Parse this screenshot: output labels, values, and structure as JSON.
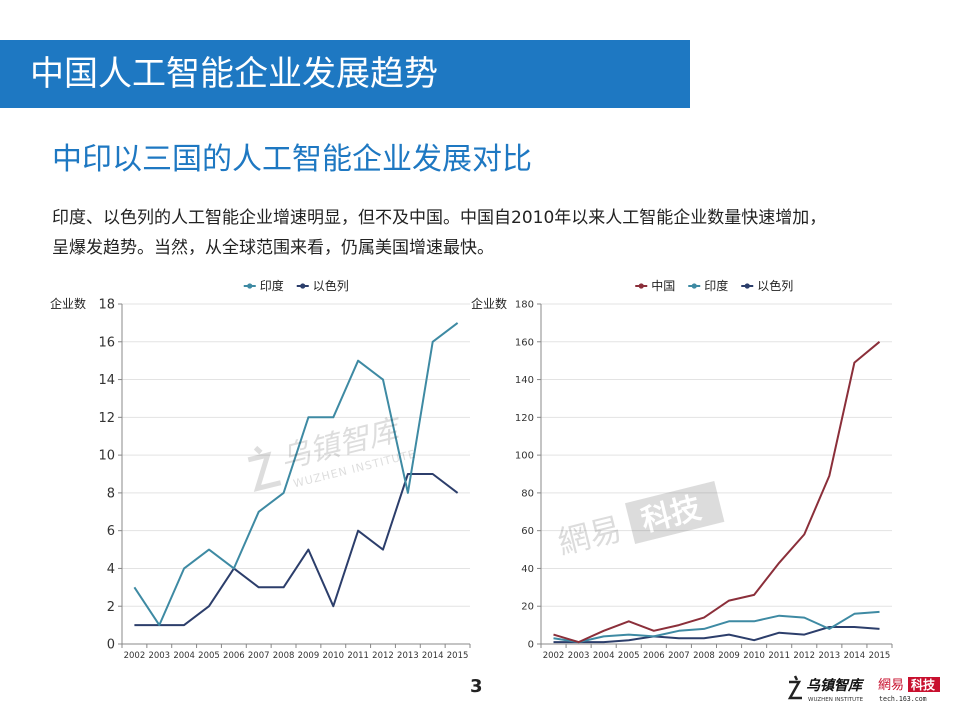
{
  "header": {
    "title": "中国人工智能企业发展趋势"
  },
  "subtitle": "中印以三国的人工智能企业发展对比",
  "body_text": {
    "line1": "印度、以色列的人工智能企业增速明显，但不及中国。中国自2010年以来人工智能企业数量快速增加，",
    "line2": "呈爆发趋势。当然，从全球范围来看，仍属美国增速最快。"
  },
  "colors": {
    "title_bar": "#1e78c2",
    "india": "#3e8aa3",
    "israel": "#2c3e6b",
    "china": "#8b2f3a"
  },
  "chart_data": [
    {
      "type": "line",
      "ylabel": "企业数",
      "ylim": [
        0,
        18
      ],
      "yticks": [
        0,
        2,
        4,
        6,
        8,
        10,
        12,
        14,
        16,
        18
      ],
      "x": [
        "2002",
        "2003",
        "2004",
        "2005",
        "2006",
        "2007",
        "2008",
        "2009",
        "2010",
        "2011",
        "2012",
        "2013",
        "2014",
        "2015"
      ],
      "legend_position": "top",
      "series": [
        {
          "name": "印度",
          "color": "#3e8aa3",
          "values": [
            3,
            1,
            4,
            5,
            4,
            7,
            8,
            12,
            12,
            15,
            14,
            8,
            16,
            17
          ]
        },
        {
          "name": "以色列",
          "color": "#2c3e6b",
          "values": [
            1,
            1,
            1,
            2,
            4,
            3,
            3,
            5,
            2,
            6,
            5,
            9,
            9,
            8
          ]
        }
      ]
    },
    {
      "type": "line",
      "ylabel": "企业数",
      "ylim": [
        0,
        180
      ],
      "yticks": [
        0,
        20,
        40,
        60,
        80,
        100,
        120,
        140,
        160,
        180
      ],
      "x": [
        "2002",
        "2003",
        "2004",
        "2005",
        "2006",
        "2007",
        "2008",
        "2009",
        "2010",
        "2011",
        "2012",
        "2013",
        "2014",
        "2015"
      ],
      "legend_position": "top",
      "series": [
        {
          "name": "中国",
          "color": "#8b2f3a",
          "values": [
            5,
            1,
            7,
            12,
            7,
            10,
            14,
            23,
            26,
            43,
            58,
            89,
            149,
            160
          ]
        },
        {
          "name": "印度",
          "color": "#3e8aa3",
          "values": [
            3,
            1,
            4,
            5,
            4,
            7,
            8,
            12,
            12,
            15,
            14,
            8,
            16,
            17
          ]
        },
        {
          "name": "以色列",
          "color": "#2c3e6b",
          "values": [
            1,
            1,
            1,
            2,
            4,
            3,
            3,
            5,
            2,
            6,
            5,
            9,
            9,
            8
          ]
        }
      ]
    }
  ],
  "watermarks": {
    "wuzhen_cn": "乌镇智库",
    "wuzhen_en": "WUZHEN INSTITUTE",
    "netease_cn": "網易",
    "netease_tech": "科技"
  },
  "footer": {
    "page_number": "3",
    "logo_cn": "乌镇智库",
    "logo_en": "WUZHEN INSTITUTE",
    "logo_163_cn": "網易",
    "logo_163_tech": "科技",
    "logo_163_url": "tech.163.com"
  }
}
